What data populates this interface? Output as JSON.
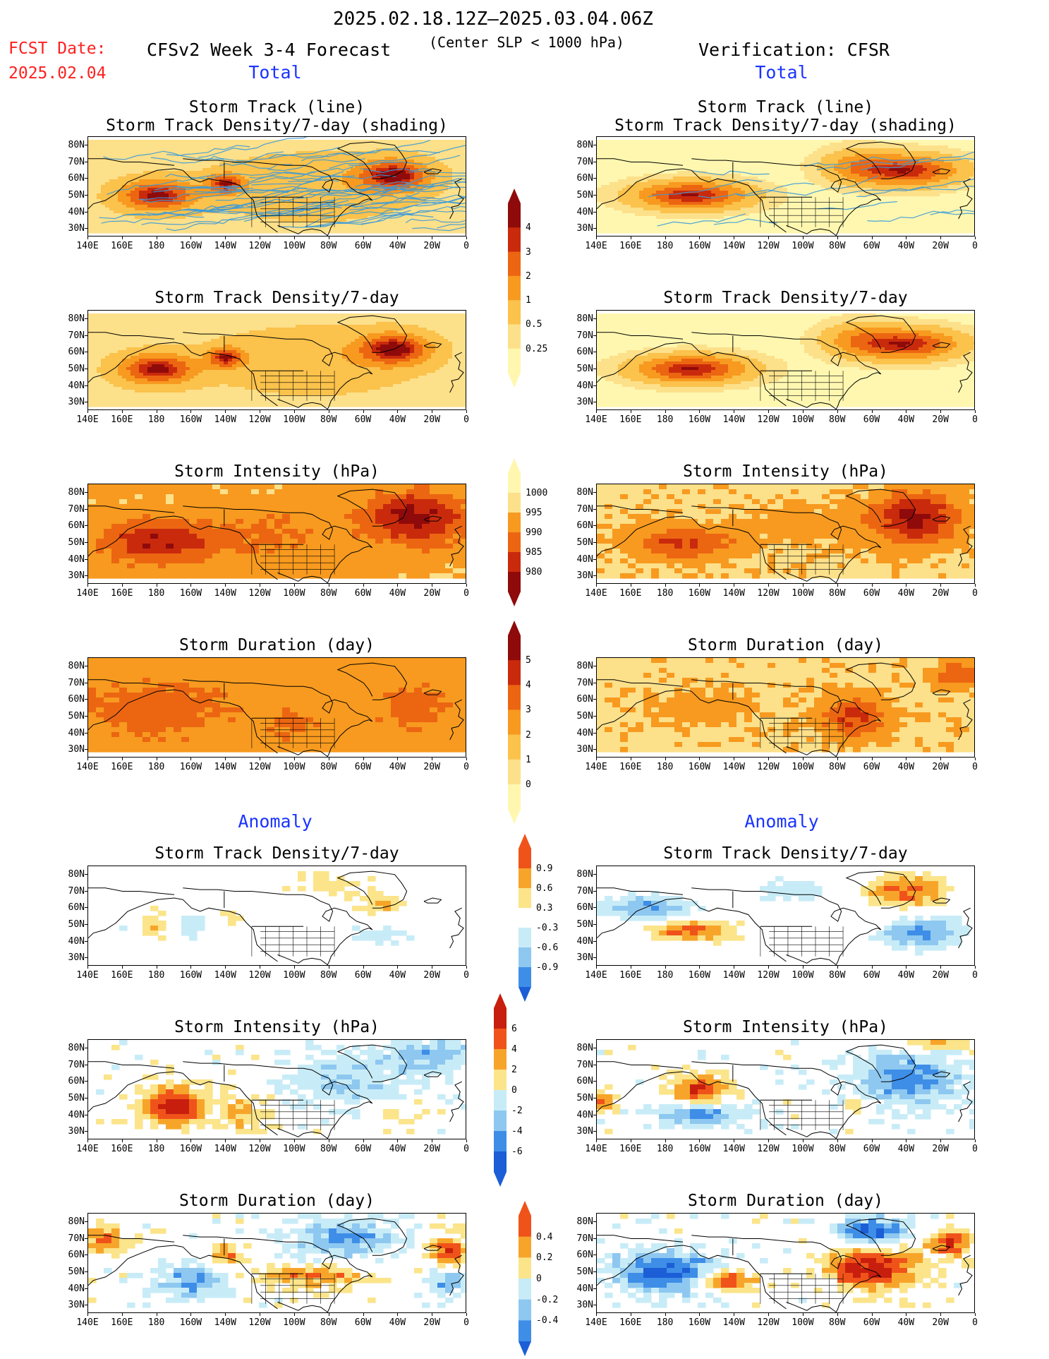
{
  "header": {
    "period": "2025.02.18.12Z–2025.03.04.06Z",
    "fcst_label": "FCST Date:",
    "fcst_date": "2025.02.04",
    "model": "CFSv2 Week 3-4 Forecast",
    "criterion": "(Center SLP < 1000 hPa)",
    "verification": "Verification: CFSR"
  },
  "sections": {
    "total_left": "Total",
    "total_right": "Total",
    "anomaly_left": "Anomaly",
    "anomaly_right": "Anomaly"
  },
  "panel_titles": {
    "track_line": "Storm Track (line)",
    "track_density_shading": "Storm Track Density/7-day (shading)",
    "track_density": "Storm Track Density/7-day",
    "intensity": "Storm Intensity (hPa)",
    "duration": "Storm Duration (day)"
  },
  "axes": {
    "lat_ticks": [
      "80N",
      "70N",
      "60N",
      "50N",
      "40N",
      "30N"
    ],
    "lon_ticks": [
      "140E",
      "160E",
      "180",
      "160W",
      "140W",
      "120W",
      "100W",
      "80W",
      "60W",
      "40W",
      "20W",
      "0"
    ]
  },
  "colorbars": {
    "total_density": {
      "ticks": [
        "4",
        "3",
        "2",
        "1",
        "0.5",
        "0.25"
      ]
    },
    "total_intensity": {
      "ticks": [
        "1000",
        "995",
        "990",
        "985",
        "980"
      ]
    },
    "total_duration": {
      "ticks": [
        "5",
        "4",
        "3",
        "2",
        "1",
        "0"
      ]
    },
    "anom_density": {
      "ticks": [
        "0.9",
        "0.6",
        "0.3",
        "-0.3",
        "-0.6",
        "-0.9"
      ]
    },
    "anom_intensity": {
      "ticks": [
        "6",
        "4",
        "2",
        "0",
        "-2",
        "-4",
        "-6"
      ]
    },
    "anom_duration": {
      "ticks": [
        "0.4",
        "0.2",
        "0",
        "-0.2",
        "-0.4"
      ]
    }
  },
  "colors": {
    "seq": [
      "#fff7b0",
      "#fde08a",
      "#fbc24c",
      "#f79a1f",
      "#ec6612",
      "#c92a0c",
      "#8f0a0a"
    ],
    "div_pos": [
      "#fbe48a",
      "#f7a52a",
      "#f0531a",
      "#c81e0e"
    ],
    "div_neg": [
      "#c8ecf7",
      "#8ec8f0",
      "#3e8ee8",
      "#1b5ed6"
    ],
    "track": "#3b9ad8"
  },
  "chart_data": {
    "type": "heatmap",
    "description_units": {
      "density": "storms per 7 days",
      "intensity": "hPa",
      "duration": "day"
    },
    "xlim": [
      "140E",
      "0"
    ],
    "ylim": [
      "25N",
      "85N"
    ],
    "panels": [
      {
        "id": "fc_track",
        "field": "Storm Track Density/7-day (shading) + Storm Track (line)",
        "section": "Total",
        "source": "CFSv2"
      },
      {
        "id": "ob_track",
        "field": "Storm Track Density/7-day (shading) + Storm Track (line)",
        "section": "Total",
        "source": "CFSR"
      },
      {
        "id": "fc_density",
        "field": "Storm Track Density/7-day",
        "section": "Total",
        "source": "CFSv2",
        "centers": [
          {
            "lon": "180",
            "lat": 50,
            "value": 4
          },
          {
            "lon": "140W",
            "lat": 58,
            "value": 3.5
          },
          {
            "lon": "40W",
            "lat": 62,
            "value": 4
          }
        ]
      },
      {
        "id": "ob_density",
        "field": "Storm Track Density/7-day",
        "section": "Total",
        "source": "CFSR",
        "centers": [
          {
            "lon": "160W",
            "lat": 50,
            "value": 4
          },
          {
            "lon": "40W",
            "lat": 65,
            "value": 4
          }
        ]
      },
      {
        "id": "fc_intensity",
        "field": "Storm Intensity (hPa)",
        "section": "Total",
        "source": "CFSv2"
      },
      {
        "id": "ob_intensity",
        "field": "Storm Intensity (hPa)",
        "section": "Total",
        "source": "CFSR"
      },
      {
        "id": "fc_duration",
        "field": "Storm Duration (day)",
        "section": "Total",
        "source": "CFSv2"
      },
      {
        "id": "ob_duration",
        "field": "Storm Duration (day)",
        "section": "Total",
        "source": "CFSR"
      },
      {
        "id": "fc_anom_density",
        "field": "Storm Track Density/7-day",
        "section": "Anomaly",
        "source": "CFSv2"
      },
      {
        "id": "ob_anom_density",
        "field": "Storm Track Density/7-day",
        "section": "Anomaly",
        "source": "CFSR"
      },
      {
        "id": "fc_anom_intensity",
        "field": "Storm Intensity (hPa)",
        "section": "Anomaly",
        "source": "CFSv2"
      },
      {
        "id": "ob_anom_intensity",
        "field": "Storm Intensity (hPa)",
        "section": "Anomaly",
        "source": "CFSR"
      },
      {
        "id": "fc_anom_duration",
        "field": "Storm Duration (day)",
        "section": "Anomaly",
        "source": "CFSv2"
      },
      {
        "id": "ob_anom_duration",
        "field": "Storm Duration (day)",
        "section": "Anomaly",
        "source": "CFSR"
      }
    ]
  }
}
